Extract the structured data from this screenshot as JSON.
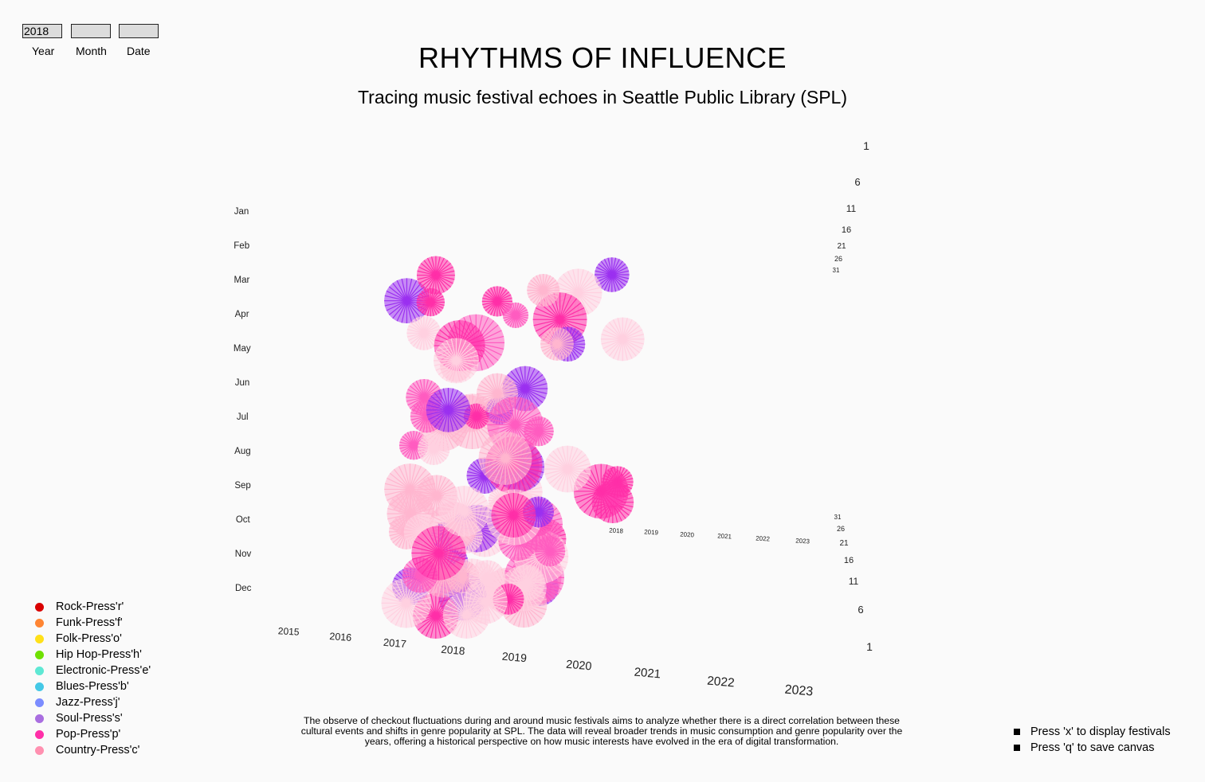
{
  "inputs": {
    "year": {
      "value": "2018",
      "label": "Year"
    },
    "month": {
      "value": "",
      "label": "Month"
    },
    "date": {
      "value": "",
      "label": "Date"
    }
  },
  "header": {
    "title": "RHYTHMS OF INFLUENCE",
    "subtitle": "Tracing music festival echoes in Seattle Public Library (SPL)"
  },
  "legend": [
    {
      "label": "Rock-Press'r'",
      "color": "#d90000"
    },
    {
      "label": "Funk-Press'f'",
      "color": "#ff8533"
    },
    {
      "label": "Folk-Press'o'",
      "color": "#ffe019"
    },
    {
      "label": "Hip Hop-Press'h'",
      "color": "#6fe000"
    },
    {
      "label": "Electronic-Press'e'",
      "color": "#5ee8d4"
    },
    {
      "label": "Blues-Press'b'",
      "color": "#44c8e6"
    },
    {
      "label": "Jazz-Press'j'",
      "color": "#7b8cff"
    },
    {
      "label": "Soul-Press's'",
      "color": "#a96ee0"
    },
    {
      "label": "Pop-Press'p'",
      "color": "#ff2fa8"
    },
    {
      "label": "Country-Press'c'",
      "color": "#ff90b0"
    }
  ],
  "description": "The observe of checkout fluctuations during and around music festivals aims to analyze whether there is a direct correlation between these cultural events and shifts in genre popularity at SPL. The data will reveal broader trends in music consumption and genre popularity over the years, offering a historical perspective on how music interests have evolved in the era of digital transformation.",
  "hints": [
    "Press 'x' to display festivals",
    "Press 'q' to save canvas"
  ],
  "chart_data": {
    "type": "scatter",
    "title": "RHYTHMS OF INFLUENCE",
    "months": [
      "Jan",
      "Feb",
      "Mar",
      "Apr",
      "May",
      "Jun",
      "Jul",
      "Aug",
      "Sep",
      "Oct",
      "Nov",
      "Dec"
    ],
    "years_front": [
      "2015",
      "2016",
      "2017",
      "2018",
      "2019",
      "2020",
      "2021",
      "2022",
      "2023"
    ],
    "years_back": [
      "2018",
      "2019",
      "2020",
      "2021",
      "2022",
      "2023"
    ],
    "days_top": [
      "1",
      "6",
      "11",
      "16",
      "21",
      "26",
      "31"
    ],
    "days_bottom": [
      "31",
      "26",
      "21",
      "16",
      "11",
      "6",
      "1"
    ],
    "series_colors": {
      "pop": "#ff2fa8",
      "soul": "#9b30f0",
      "country": "#ffb6cf"
    },
    "points_count": 90
  }
}
